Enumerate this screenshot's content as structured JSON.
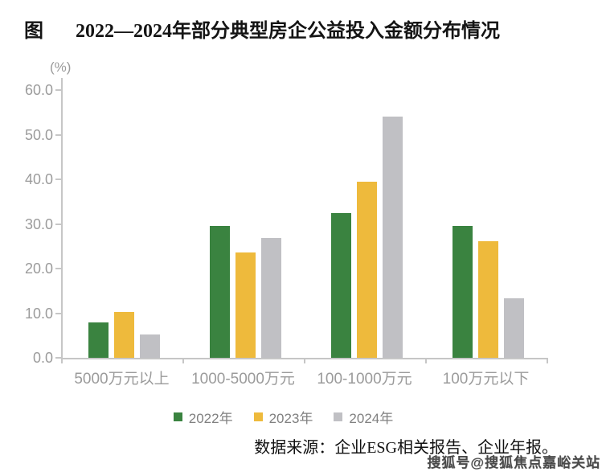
{
  "header": {
    "figure_label": "图",
    "title": "2022—2024年部分典型房企公益投入金额分布情况"
  },
  "chart_data": {
    "type": "bar",
    "unit_label": "(%)",
    "categories": [
      "5000万元以上",
      "1000-5000万元",
      "100-1000万元",
      "100万元以下"
    ],
    "series": [
      {
        "name": "2022年",
        "color": "#3a8340",
        "values": [
          7.9,
          29.5,
          32.4,
          29.5
        ]
      },
      {
        "name": "2023年",
        "color": "#eeba3c",
        "values": [
          10.2,
          23.6,
          39.4,
          26.2
        ]
      },
      {
        "name": "2024年",
        "color": "#c0c0c4",
        "values": [
          5.2,
          26.9,
          54.0,
          13.3
        ]
      }
    ],
    "ylim": [
      0,
      60
    ],
    "ytick_labels": [
      "0.0",
      "10.0",
      "20.0",
      "30.0",
      "40.0",
      "50.0",
      "60.0"
    ],
    "grid": false,
    "legend_position": "bottom"
  },
  "footer": {
    "source": "数据来源：企业ESG相关报告、企业年报。",
    "watermark": "搜狐号@搜狐焦点嘉峪关站"
  },
  "colors": {
    "axis": "#c6c6c6",
    "tick_text": "#9b9b9b",
    "legend_text": "#808080"
  }
}
